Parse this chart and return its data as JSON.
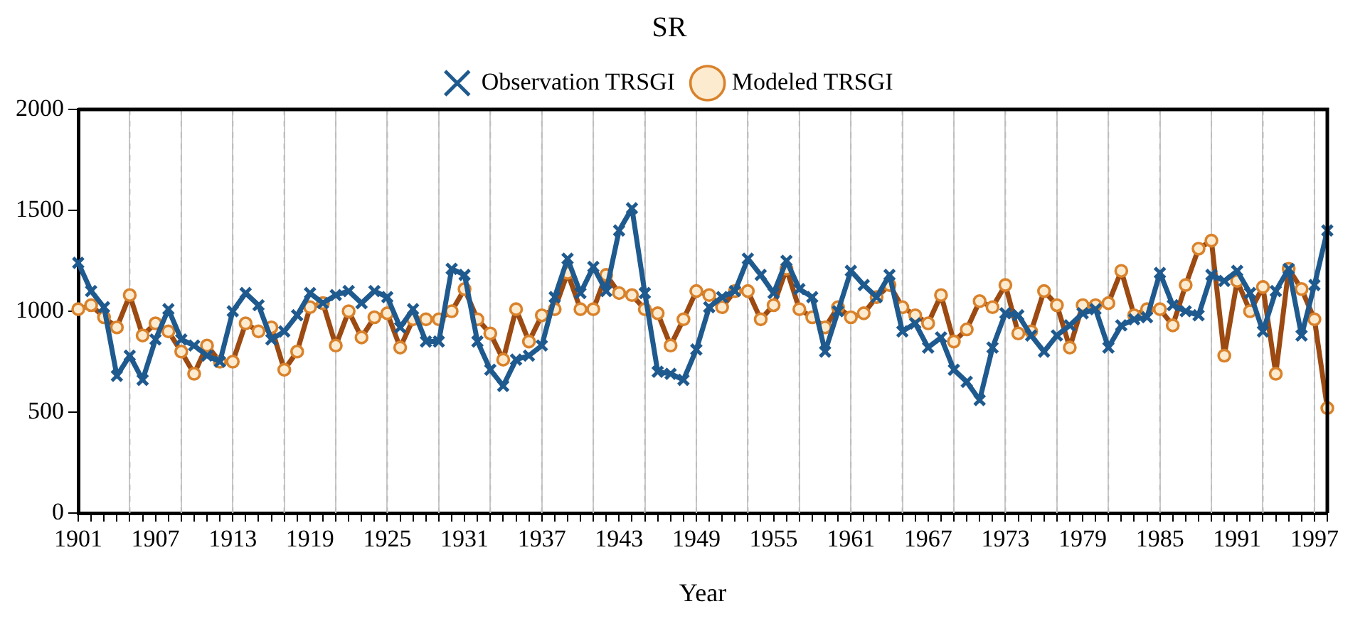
{
  "chart_data": {
    "type": "line",
    "title": "SR",
    "xlabel": "Year",
    "categories": [
      "1901",
      null,
      null,
      null,
      null,
      null,
      "1907",
      null,
      null,
      null,
      null,
      null,
      "1913",
      null,
      null,
      null,
      null,
      null,
      "1919",
      null,
      null,
      null,
      null,
      null,
      "1925",
      null,
      null,
      null,
      null,
      null,
      "1931",
      null,
      null,
      null,
      null,
      null,
      "1937",
      null,
      null,
      null,
      null,
      null,
      "1943",
      null,
      null,
      null,
      null,
      null,
      "1949",
      null,
      null,
      null,
      null,
      null,
      "1955",
      null,
      null,
      null,
      null,
      null,
      "1961",
      null,
      null,
      null,
      null,
      null,
      "1967",
      null,
      null,
      null,
      null,
      null,
      "1973",
      null,
      null,
      null,
      null,
      null,
      "1979",
      null,
      null,
      null,
      null,
      null,
      "1985",
      null,
      null,
      null,
      null,
      null,
      "1991",
      null,
      null,
      null,
      null,
      null,
      "1997",
      null
    ],
    "series": [
      {
        "name": "Observation TRSGI",
        "color": "#1f5a8f",
        "marker": "cross",
        "values": [
          1240,
          1100,
          1020,
          680,
          780,
          660,
          860,
          1010,
          860,
          830,
          780,
          750,
          1000,
          1090,
          1030,
          860,
          900,
          980,
          1090,
          1040,
          1080,
          1100,
          1040,
          1100,
          1070,
          920,
          1010,
          850,
          850,
          1210,
          1180,
          850,
          710,
          630,
          760,
          780,
          830,
          1070,
          1260,
          1090,
          1220,
          1100,
          1400,
          1510,
          1090,
          700,
          690,
          660,
          810,
          1020,
          1070,
          1100,
          1260,
          1180,
          1090,
          1250,
          1110,
          1070,
          800,
          1000,
          1200,
          1130,
          1070,
          1180,
          900,
          940,
          820,
          870,
          710,
          650,
          560,
          820,
          990,
          980,
          880,
          800,
          880,
          930,
          990,
          1010,
          820,
          930,
          960,
          970,
          1190,
          1030,
          1000,
          980,
          1180,
          1150,
          1200,
          1090,
          900,
          1100,
          1210,
          880,
          1130,
          1400
        ]
      },
      {
        "name": "Modeled TRSGI",
        "color": "#9c4a12",
        "marker": "circle",
        "values": [
          1010,
          1030,
          970,
          920,
          1080,
          880,
          940,
          900,
          800,
          690,
          830,
          750,
          750,
          940,
          900,
          920,
          710,
          800,
          1020,
          1040,
          830,
          1000,
          870,
          970,
          990,
          820,
          960,
          960,
          960,
          1000,
          1110,
          960,
          890,
          760,
          1010,
          850,
          980,
          1010,
          1190,
          1010,
          1010,
          1180,
          1090,
          1080,
          1010,
          990,
          830,
          960,
          1100,
          1080,
          1020,
          1100,
          1100,
          960,
          1030,
          1210,
          1010,
          970,
          920,
          1020,
          970,
          990,
          1070,
          1130,
          1020,
          980,
          940,
          1080,
          850,
          910,
          1050,
          1020,
          1130,
          890,
          900,
          1100,
          1030,
          820,
          1030,
          1030,
          1040,
          1200,
          980,
          1010,
          1010,
          930,
          1130,
          1310,
          1350,
          780,
          1150,
          1000,
          1120,
          690,
          1210,
          1110,
          960,
          520
        ]
      }
    ],
    "ylim": [
      0,
      2000
    ],
    "yticks": [
      0,
      500,
      1000,
      1500,
      2000
    ],
    "grid": "x",
    "legend": "top"
  }
}
